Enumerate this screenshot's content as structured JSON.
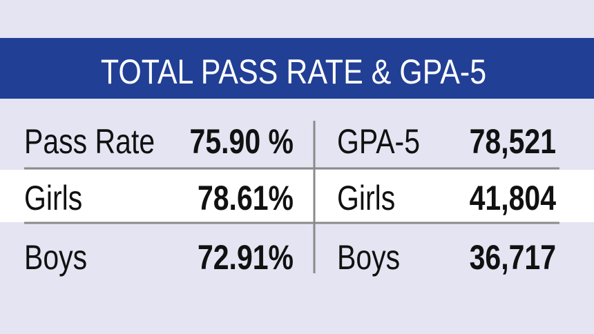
{
  "title": "TOTAL PASS RATE & GPA-5",
  "table": {
    "rows": [
      [
        "Pass Rate",
        "75.90 %",
        "GPA-5",
        "78,521"
      ],
      [
        "Girls",
        "78.61%",
        "Girls",
        "41,804"
      ],
      [
        "Boys",
        "72.91%",
        "Boys",
        "36,717"
      ]
    ]
  }
}
